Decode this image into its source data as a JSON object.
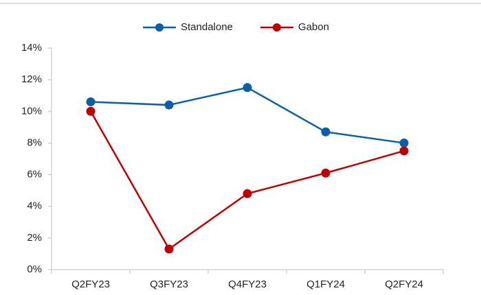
{
  "chart_data": {
    "type": "line",
    "categories": [
      "Q2FY23",
      "Q3FY23",
      "Q4FY23",
      "Q1FY24",
      "Q2FY24"
    ],
    "series": [
      {
        "name": "Standalone",
        "color": "#0b5ea8",
        "values": [
          10.6,
          10.4,
          11.5,
          8.7,
          8.0
        ]
      },
      {
        "name": "Gabon",
        "color": "#c00000",
        "values": [
          10.0,
          1.3,
          4.8,
          6.1,
          7.5
        ]
      }
    ],
    "ylim": [
      0,
      14
    ],
    "yticks": [
      {
        "value": 0,
        "label": "0%"
      },
      {
        "value": 2,
        "label": "2%"
      },
      {
        "value": 4,
        "label": "4%"
      },
      {
        "value": 6,
        "label": "6%"
      },
      {
        "value": 8,
        "label": "8%"
      },
      {
        "value": 10,
        "label": "10%"
      },
      {
        "value": 12,
        "label": "12%"
      },
      {
        "value": 14,
        "label": "14%"
      }
    ],
    "grid": false,
    "legend": "top"
  }
}
